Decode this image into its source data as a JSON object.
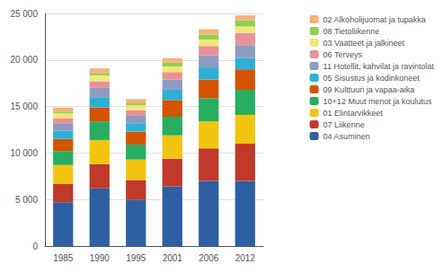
{
  "chart_data": {
    "type": "bar",
    "stacked": true,
    "categories": [
      "1985",
      "1990",
      "1995",
      "2001",
      "2006",
      "2012"
    ],
    "series": [
      {
        "name": "04 Asuminen",
        "color": "#2E5FA3",
        "values": [
          4700,
          6200,
          5000,
          6400,
          7000,
          7000
        ]
      },
      {
        "name": "07 Liikenne",
        "color": "#C0392B",
        "values": [
          2000,
          2600,
          2100,
          3000,
          3500,
          4000
        ]
      },
      {
        "name": "01 Elintarvikkeet",
        "color": "#F1C40F",
        "values": [
          2000,
          2600,
          2200,
          2500,
          2900,
          3100
        ]
      },
      {
        "name": "10+12 Muut menot ja koulutus",
        "color": "#27AE60",
        "values": [
          1500,
          2000,
          1600,
          2000,
          2500,
          2700
        ]
      },
      {
        "name": "09 Kulttuuri ja vapaa-aika",
        "color": "#D35400",
        "values": [
          1300,
          1500,
          1400,
          1800,
          2000,
          2200
        ]
      },
      {
        "name": "05 Sisustus ja kodinkoneet",
        "color": "#2EB0D6",
        "values": [
          900,
          1100,
          900,
          1100,
          1300,
          1200
        ]
      },
      {
        "name": "11 Hotellit, kahvilat ja ravintolat",
        "color": "#8E9BC0",
        "values": [
          800,
          1000,
          800,
          1100,
          1300,
          1400
        ]
      },
      {
        "name": "06 Terveys",
        "color": "#E8919A",
        "values": [
          500,
          700,
          600,
          800,
          1000,
          1300
        ]
      },
      {
        "name": "03 Vaatteet ja jalkineet",
        "color": "#F5E67A",
        "values": [
          550,
          650,
          550,
          600,
          700,
          700
        ]
      },
      {
        "name": "08 Tietoliikenne",
        "color": "#90D050",
        "values": [
          200,
          250,
          200,
          400,
          550,
          650
        ]
      },
      {
        "name": "02 Alkoholijuomat ja tupakka",
        "color": "#F5B37A",
        "values": [
          450,
          500,
          450,
          500,
          550,
          550
        ]
      }
    ],
    "ylim": [
      0,
      25000
    ],
    "yticks": [
      0,
      {
        "value": 5000,
        "label": "5 000"
      },
      {
        "value": 10000,
        "label": "10 000"
      },
      {
        "value": 15000,
        "label": "15 000"
      },
      {
        "value": 20000,
        "label": "20 000"
      },
      {
        "value": 25000,
        "label": "25 000"
      }
    ],
    "grid": true,
    "legend": "right"
  }
}
